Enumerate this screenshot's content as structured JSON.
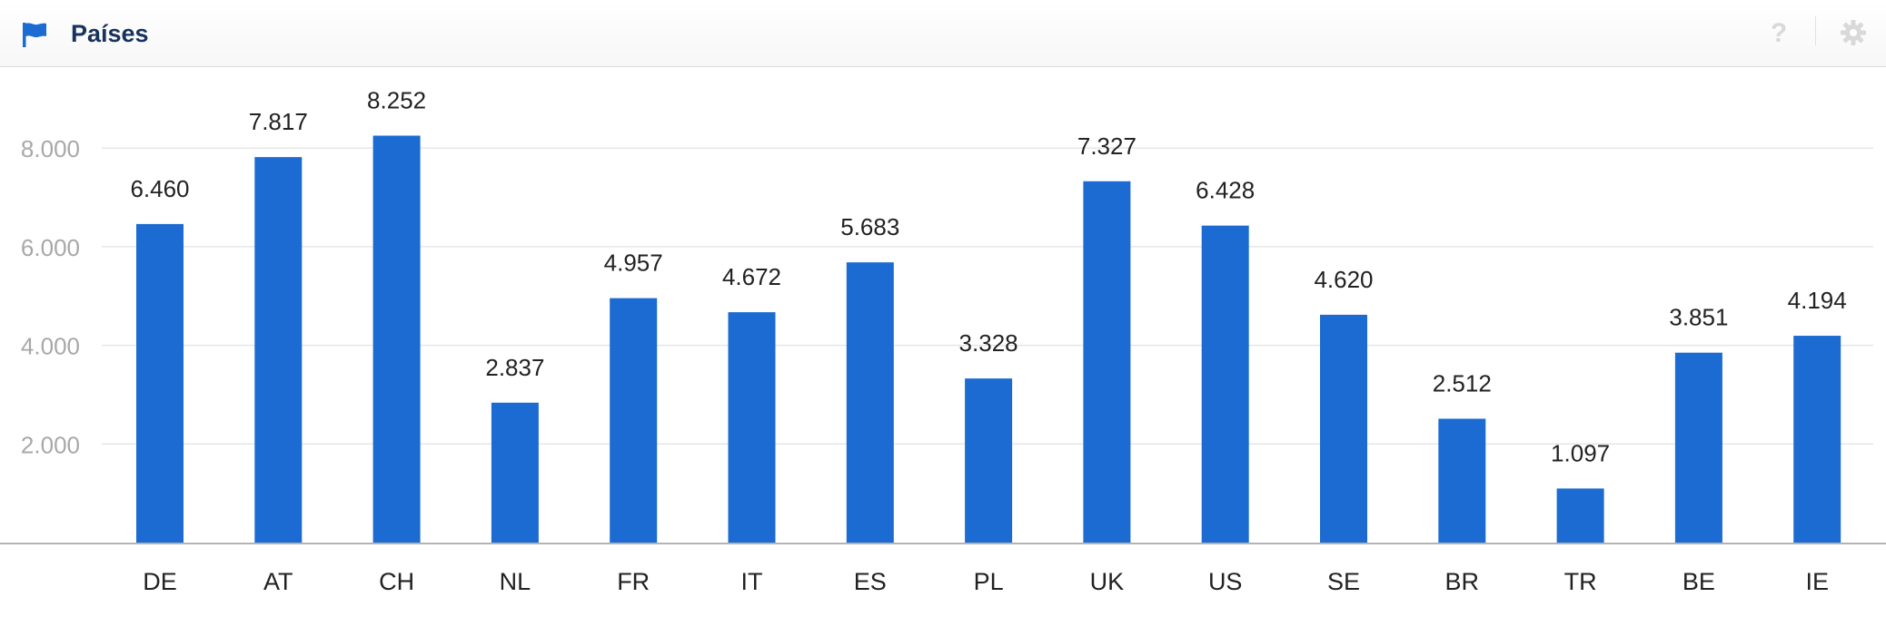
{
  "header": {
    "title": "Países",
    "flag_icon": "flag-icon",
    "help_icon": "help-icon",
    "help_label": "?",
    "settings_icon": "gear-icon"
  },
  "colors": {
    "bar": "#1c6bd2",
    "title": "#17325c",
    "tick_label": "#a8a8a8",
    "grid": "#e6e6e6",
    "axis": "#b3b3b3",
    "icon": "#1c6bd2",
    "muted_icon": "#d9d9d9"
  },
  "chart_data": {
    "type": "bar",
    "categories": [
      "DE",
      "AT",
      "CH",
      "NL",
      "FR",
      "IT",
      "ES",
      "PL",
      "UK",
      "US",
      "SE",
      "BR",
      "TR",
      "BE",
      "IE"
    ],
    "values": [
      6460,
      7817,
      8252,
      2837,
      4957,
      4672,
      5683,
      3328,
      7327,
      6428,
      4620,
      2512,
      1097,
      3851,
      4194
    ],
    "value_labels": [
      "6.460",
      "7.817",
      "8.252",
      "2.837",
      "4.957",
      "4.672",
      "5.683",
      "3.328",
      "7.327",
      "6.428",
      "4.620",
      "2.512",
      "1.097",
      "3.851",
      "4.194"
    ],
    "yticks": [
      2000,
      4000,
      6000,
      8000
    ],
    "ytick_labels": [
      "2.000",
      "4.000",
      "6.000",
      "8.000"
    ],
    "ylim": [
      0,
      9500
    ],
    "grid": true,
    "legend": "none"
  }
}
